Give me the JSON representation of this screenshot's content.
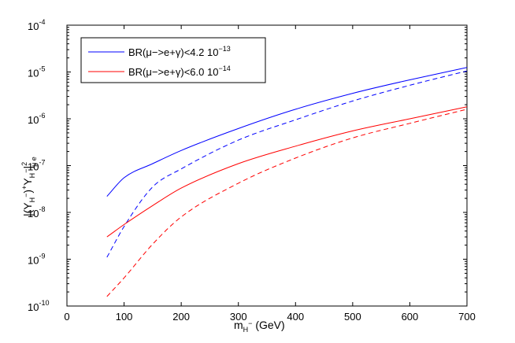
{
  "chart_data": {
    "type": "line",
    "xlabel": {
      "base": "m",
      "sub": "H",
      "sup": "−",
      "unit": " (GeV)"
    },
    "ylabel": {
      "prefix": "|(Y",
      "sub1": "H",
      "sup1": "−",
      "mid": ")",
      "sup2": "+",
      "mid2": "Y",
      "sub2": "H",
      "sup3": "−",
      "end": "|",
      "sup4": "2",
      "sub4": "μ e"
    },
    "xlim": [
      0,
      700
    ],
    "ylim": [
      1e-10,
      0.0001
    ],
    "yscale": "log",
    "xticks": [
      "0",
      "100",
      "200",
      "300",
      "400",
      "500",
      "600",
      "700"
    ],
    "yticks": [
      {
        "base": "10",
        "exp": "-4"
      },
      {
        "base": "10",
        "exp": "-5"
      },
      {
        "base": "10",
        "exp": "-6"
      },
      {
        "base": "10",
        "exp": "-7"
      },
      {
        "base": "10",
        "exp": "-8"
      },
      {
        "base": "10",
        "exp": "-9"
      },
      {
        "base": "10",
        "exp": "-10"
      }
    ],
    "legend_position": "top-left",
    "legend": [
      {
        "text": "BR(μ−>e+γ)<4.2 10",
        "exp": "−13",
        "color": "#0000ff"
      },
      {
        "text": "BR(μ−>e+γ)<6.0 10",
        "exp": "−14",
        "color": "#ff0000"
      }
    ],
    "series": [
      {
        "color": "#0000ff",
        "dash": "solid",
        "x": [
          70,
          100,
          150,
          200,
          300,
          400,
          500,
          600,
          700
        ],
        "y": [
          2.2e-08,
          5.5e-08,
          1.1e-07,
          2.1e-07,
          6.2e-07,
          1.6e-06,
          3.5e-06,
          6.8e-06,
          1.25e-05
        ]
      },
      {
        "color": "#0000ff",
        "dash": "dashed",
        "x": [
          70,
          100,
          150,
          200,
          300,
          400,
          500,
          600,
          700
        ],
        "y": [
          1.1e-09,
          5e-09,
          3.5e-08,
          8.5e-08,
          3.5e-07,
          9.5e-07,
          2.4e-06,
          5.2e-06,
          1.05e-05
        ]
      },
      {
        "color": "#ff0000",
        "dash": "solid",
        "x": [
          70,
          100,
          150,
          200,
          300,
          400,
          500,
          600,
          700
        ],
        "y": [
          3e-09,
          5.5e-09,
          1.4e-08,
          3.3e-08,
          1.1e-07,
          2.6e-07,
          5.5e-07,
          1e-06,
          1.8e-06
        ]
      },
      {
        "color": "#ff0000",
        "dash": "dashed",
        "x": [
          70,
          100,
          150,
          200,
          300,
          400,
          500,
          600,
          700
        ],
        "y": [
          1.6e-10,
          4e-10,
          2.1e-09,
          8e-09,
          4.2e-08,
          1.45e-07,
          3.9e-07,
          8e-07,
          1.6e-06
        ]
      }
    ]
  }
}
